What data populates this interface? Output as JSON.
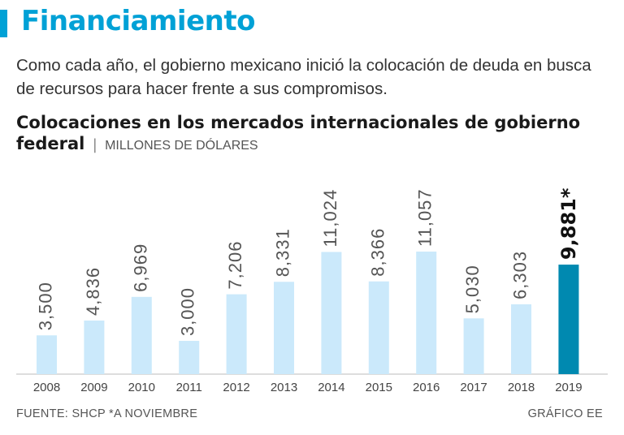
{
  "header": {
    "headline": "Financiamiento",
    "intro": "Como cada año, el gobierno mexicano inició la colocación de deuda en busca de recursos para hacer frente a sus compromisos."
  },
  "chart_data": {
    "type": "bar",
    "title": "Colocaciones en los mercados internacionales de gobierno federal",
    "title_separator": "|",
    "units": "MILLONES DE DÓLARES",
    "categories": [
      "2008",
      "2009",
      "2010",
      "2011",
      "2012",
      "2013",
      "2014",
      "2015",
      "2016",
      "2017",
      "2018",
      "2019"
    ],
    "values": [
      3500,
      4836,
      6969,
      3000,
      7206,
      8331,
      11024,
      8366,
      11057,
      5030,
      6303,
      9881
    ],
    "labels": [
      "3,500",
      "4,836",
      "6,969",
      "3,000",
      "7,206",
      "8,331",
      "11,024",
      "8,366",
      "11,057",
      "5,030",
      "6,303",
      "9,881*"
    ],
    "highlight_index": 11,
    "ylim": [
      0,
      11057
    ],
    "grid": false,
    "colors": {
      "bar": "#cbe9fb",
      "highlight": "#0089b0",
      "axis": "#bbbbbb",
      "label": "#555555",
      "highlight_label": "#111111"
    }
  },
  "footer": {
    "source": "FUENTE: SHCP *A NOVIEMBRE",
    "credit": "GRÁFICO EE"
  }
}
